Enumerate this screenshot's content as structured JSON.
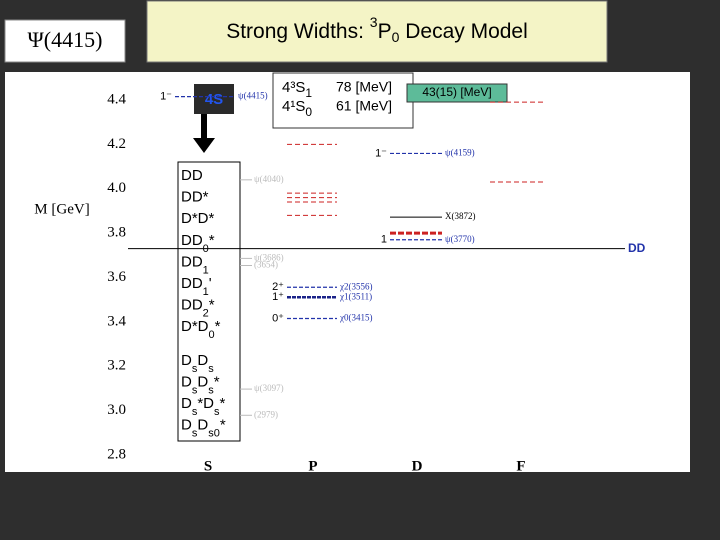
{
  "header": {
    "label": "Ψ(4415)",
    "title": {
      "text1": "Strong Widths: ",
      "sup": "3",
      "main": "P",
      "sub": "0",
      "text2": " Decay Model"
    }
  },
  "widths": {
    "rows": [
      {
        "state": "4³S",
        "sub": "1",
        "width": "78 [MeV]"
      },
      {
        "state": "4¹S",
        "sub": "0",
        "width": "61 [MeV]"
      }
    ],
    "measured": "43(15) [MeV]"
  },
  "axis": {
    "label": "M [GeV]",
    "ylim": [
      2.8,
      4.5
    ],
    "yticks": [
      2.8,
      {
        "value": 3,
        "label": "3.0"
      },
      3.2,
      3.4,
      3.6,
      3.8,
      {
        "value": 4,
        "label": "4.0"
      },
      4.2,
      4.4
    ]
  },
  "columns": [
    "S",
    "P",
    "D",
    "F"
  ],
  "state_box": "4S",
  "channels": [
    [
      {
        "text": "DD"
      }
    ],
    [
      {
        "text": "DD*"
      }
    ],
    [
      {
        "text": "D*D*"
      }
    ],
    [
      {
        "text": "DD"
      },
      {
        "sub": "0"
      },
      {
        "text": "*"
      }
    ],
    [
      {
        "text": "DD"
      },
      {
        "sub": "1"
      }
    ],
    [
      {
        "text": "DD"
      },
      {
        "sub": "1"
      },
      {
        "text": "'"
      }
    ],
    [
      {
        "text": "DD"
      },
      {
        "sub": "2"
      },
      {
        "text": "*"
      }
    ],
    [
      {
        "text": "D*D"
      },
      {
        "sub": "0"
      },
      {
        "text": "*"
      }
    ],
    [
      {
        "text": "D"
      },
      {
        "sub": "s"
      },
      {
        "text": "D"
      },
      {
        "sub": "s"
      }
    ],
    [
      {
        "text": "D"
      },
      {
        "sub": "s"
      },
      {
        "text": "D"
      },
      {
        "sub": "s"
      },
      {
        "text": "*"
      }
    ],
    [
      {
        "text": "D"
      },
      {
        "sub": "s"
      },
      {
        "text": "*D"
      },
      {
        "sub": "s"
      },
      {
        "text": "*"
      }
    ],
    [
      {
        "text": "D"
      },
      {
        "sub": "s"
      },
      {
        "text": "D"
      },
      {
        "sub": "s0"
      },
      {
        "text": "*"
      }
    ]
  ],
  "threshold": {
    "label": "DD",
    "mass": 3.73
  },
  "levels": [
    {
      "column": 0,
      "mass": 4.415,
      "jp": "1⁻",
      "label": "ψ(4415)",
      "style": "blue"
    },
    {
      "column": 0,
      "mass": 4.04,
      "label": "ψ(4040)",
      "style": "faint"
    },
    {
      "column": 0,
      "mass": 3.686,
      "label": "ψ(3686)",
      "style": "faint"
    },
    {
      "column": 0,
      "mass": 3.654,
      "label": "(3654)",
      "style": "faint"
    },
    {
      "column": 0,
      "mass": 3.097,
      "label": "ψ(3097)",
      "style": "faint"
    },
    {
      "column": 0,
      "mass": 2.979,
      "label": "(2979)",
      "style": "faint"
    },
    {
      "column": 1,
      "mass": 4.2,
      "style": "red"
    },
    {
      "column": 1,
      "mass": 3.98,
      "style": "red"
    },
    {
      "column": 1,
      "mass": 3.96,
      "style": "red"
    },
    {
      "column": 1,
      "mass": 3.94,
      "style": "red"
    },
    {
      "column": 1,
      "mass": 3.88,
      "style": "red"
    },
    {
      "column": 1,
      "mass": 3.556,
      "jp": "2⁺",
      "label": "χ2(3556)",
      "style": "blue"
    },
    {
      "column": 1,
      "mass": 3.511,
      "jp": "1⁺",
      "label": "χ1(3511)",
      "style": "bold"
    },
    {
      "column": 1,
      "mass": 3.415,
      "jp": "0⁺",
      "label": "χ0(3415)",
      "style": "blue"
    },
    {
      "column": 2,
      "mass": 4.159,
      "jp": "1⁻",
      "label": "ψ(4159)",
      "style": "blue"
    },
    {
      "column": 2,
      "mass": 3.872,
      "label": "X(3872)",
      "style": "solid"
    },
    {
      "column": 2,
      "mass": 3.8,
      "style": "thickred"
    },
    {
      "column": 2,
      "mass": 3.77,
      "jp": "1",
      "label": "ψ(3770)",
      "style": "blue"
    },
    {
      "column": 3,
      "mass": 4.39,
      "style": "red"
    },
    {
      "column": 3,
      "mass": 4.03,
      "style": "red"
    }
  ]
}
